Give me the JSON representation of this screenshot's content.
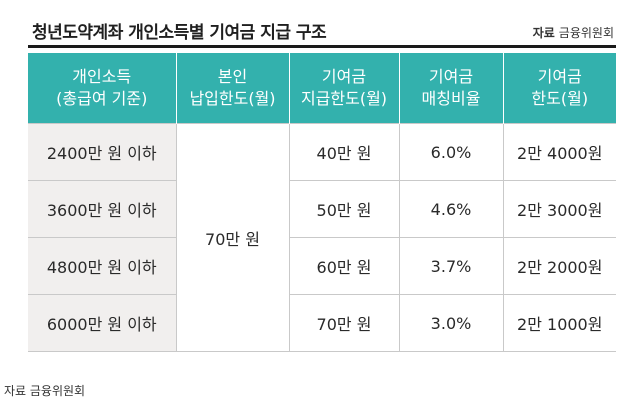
{
  "title": "청년도약계좌 개인소득별 기여금 지급 구조",
  "source_top": {
    "label": "자료",
    "value": "금융위원회"
  },
  "table": {
    "headers": [
      {
        "line1": "개인소득",
        "line2": "(총급여 기준)"
      },
      {
        "line1": "본인",
        "line2": "납입한도(월)"
      },
      {
        "line1": "기여금",
        "line2": "지급한도(월)"
      },
      {
        "line1": "기여금",
        "line2": "매칭비율"
      },
      {
        "line1": "기여금",
        "line2": "한도(월)"
      }
    ],
    "personal_limit": "70만 원",
    "rows": [
      {
        "income": "2400만 원 이하",
        "contribution_limit": "40만 원",
        "matching_rate": "6.0%",
        "contribution_cap": "2만 4000원"
      },
      {
        "income": "3600만 원 이하",
        "contribution_limit": "50만 원",
        "matching_rate": "4.6%",
        "contribution_cap": "2만 3000원"
      },
      {
        "income": "4800만 원 이하",
        "contribution_limit": "60만 원",
        "matching_rate": "3.7%",
        "contribution_cap": "2만 2000원"
      },
      {
        "income": "6000만 원 이하",
        "contribution_limit": "70만 원",
        "matching_rate": "3.0%",
        "contribution_cap": "2만 1000원"
      }
    ]
  },
  "source_bottom": "자료 금융위원회",
  "colors": {
    "header_bg": "#33b1ad",
    "income_cell_bg": "#f1efee",
    "rule": "#1a1a1a"
  }
}
